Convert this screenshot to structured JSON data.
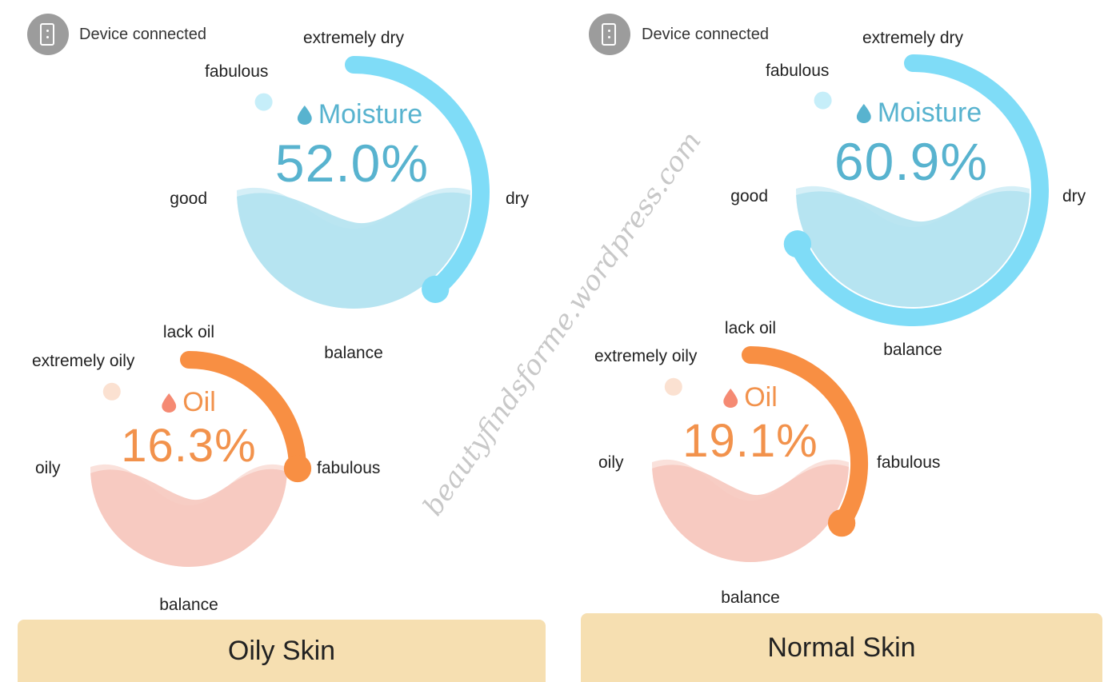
{
  "left": {
    "device_status": "Device connected",
    "moisture": {
      "title": "Moisture",
      "value": "52.0%",
      "level": 52.0,
      "labels": {
        "top": "extremely dry",
        "top_left": "fabulous",
        "left": "good",
        "right": "dry",
        "bottom": "balance"
      }
    },
    "oil": {
      "title": "Oil",
      "value": "16.3%",
      "level": 16.3,
      "labels": {
        "top": "lack oil",
        "top_left": "extremely oily",
        "left": "oily",
        "right": "fabulous",
        "bottom": "balance"
      }
    },
    "skin_type": "Oily Skin"
  },
  "right": {
    "device_status": "Device connected",
    "moisture": {
      "title": "Moisture",
      "value": "60.9%",
      "level": 60.9,
      "labels": {
        "top": "extremely dry",
        "top_left": "fabulous",
        "left": "good",
        "right": "dry",
        "bottom": "balance"
      }
    },
    "oil": {
      "title": "Oil",
      "value": "19.1%",
      "level": 19.1,
      "labels": {
        "top": "lack oil",
        "top_left": "extremely oily",
        "left": "oily",
        "right": "fabulous",
        "bottom": "balance"
      }
    },
    "skin_type": "Normal Skin"
  },
  "watermark": "beautyfindsforme.wordpress.com",
  "colors": {
    "moisture_accent": "#7fdcf7",
    "moisture_track": "#c6eef9",
    "moisture_fill": "#b2e2f0",
    "moisture_text": "#58b3cf",
    "oil_accent": "#f88f43",
    "oil_track": "#fbe1d1",
    "oil_fill": "#f6c8be",
    "oil_text": "#f2924c",
    "skin_bar": "#f6dfb1"
  },
  "icons": {
    "device": "phone-icon",
    "moisture": "water-drop-icon",
    "oil": "oil-drop-icon"
  }
}
